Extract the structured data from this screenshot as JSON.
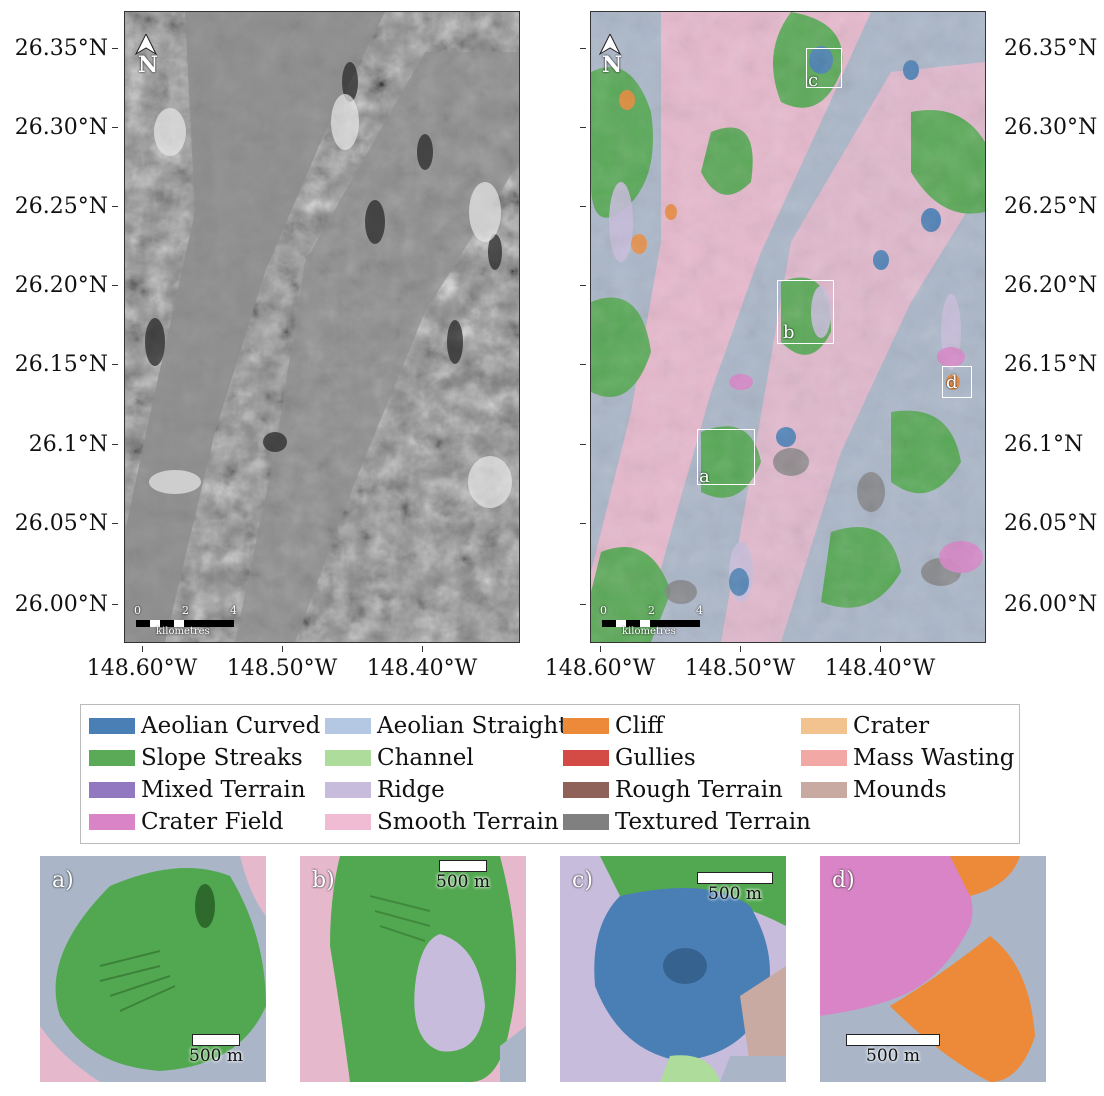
{
  "latitude_labels": [
    "26.35°N",
    "26.30°N",
    "26.25°N",
    "26.20°N",
    "26.15°N",
    "26.1°N",
    "26.05°N",
    "26.00°N"
  ],
  "longitude_labels": [
    "148.60°W",
    "148.50°W",
    "148.40°W"
  ],
  "north_label": "N",
  "scale_bar": {
    "ticks": [
      "0",
      "2",
      "4"
    ],
    "unit": "kilometres"
  },
  "boxes": [
    "a",
    "b",
    "c",
    "d"
  ],
  "legend": [
    {
      "label": "Aeolian Curved",
      "color": "#4a7fb5"
    },
    {
      "label": "Aeolian Straight",
      "color": "#b4c8e4"
    },
    {
      "label": "Cliff",
      "color": "#ec8a3a"
    },
    {
      "label": "Crater",
      "color": "#f3c38f"
    },
    {
      "label": "Slope Streaks",
      "color": "#5aaa58"
    },
    {
      "label": "Channel",
      "color": "#aedc9a"
    },
    {
      "label": "Gullies",
      "color": "#d44a44"
    },
    {
      "label": "Mass Wasting",
      "color": "#f2a8a4"
    },
    {
      "label": "Mixed Terrain",
      "color": "#9278c0"
    },
    {
      "label": "Ridge",
      "color": "#c8bcdc"
    },
    {
      "label": "Rough Terrain",
      "color": "#8e6258"
    },
    {
      "label": "Mounds",
      "color": "#c8aaa2"
    },
    {
      "label": "Crater Field",
      "color": "#d884c6"
    },
    {
      "label": "Smooth Terrain",
      "color": "#f0bcd4"
    },
    {
      "label": "Textured Terrain",
      "color": "#808080"
    }
  ],
  "insets": [
    {
      "letter": "a)",
      "scale": "500 m"
    },
    {
      "letter": "b)",
      "scale": "500 m"
    },
    {
      "letter": "c)",
      "scale": "500 m"
    },
    {
      "letter": "d)",
      "scale": "500 m"
    }
  ]
}
